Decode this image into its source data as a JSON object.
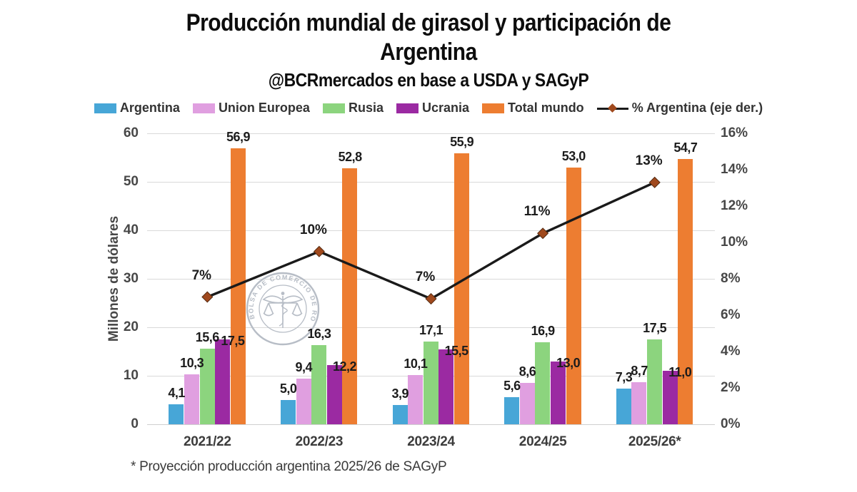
{
  "header": {
    "title": "Producción mundial de girasol y participación de Argentina",
    "subtitle": "@BCRmercados en base a USDA y SAGyP"
  },
  "legend": {
    "items": [
      {
        "label": "Argentina",
        "color": "#47A6D7",
        "type": "swatch"
      },
      {
        "label": "Union Europea",
        "color": "#E09FE0",
        "type": "swatch"
      },
      {
        "label": "Rusia",
        "color": "#8CD47E",
        "type": "swatch"
      },
      {
        "label": "Ucrania",
        "color": "#9B2AA2",
        "type": "swatch"
      },
      {
        "label": "Total mundo",
        "color": "#ED7D31",
        "type": "swatch"
      },
      {
        "label": "% Argentina (eje der.)",
        "color": "#1a1a1a",
        "marker_color": "#A0491D",
        "type": "line"
      }
    ]
  },
  "watermark": {
    "text": "BOLSA DE COMERCIO DE ROSARIO"
  },
  "footnote": {
    "text": "* Proyección producción argentina 2025/26 de SAGyP"
  },
  "chart_data": {
    "type": "bar",
    "categories": [
      "2021/22",
      "2022/23",
      "2023/24",
      "2024/25",
      "2025/26*"
    ],
    "series": [
      {
        "name": "Argentina",
        "color": "#47A6D7",
        "values": [
          4.1,
          5.0,
          3.9,
          5.6,
          7.3
        ],
        "labels": [
          "4,1",
          "5,0",
          "3,9",
          "5,6",
          "7,3"
        ]
      },
      {
        "name": "Union Europea",
        "color": "#E09FE0",
        "values": [
          10.3,
          9.4,
          10.1,
          8.6,
          8.7
        ],
        "labels": [
          "10,3",
          "9,4",
          "10,1",
          "8,6",
          "8,7"
        ]
      },
      {
        "name": "Rusia",
        "color": "#8CD47E",
        "values": [
          15.6,
          16.3,
          17.1,
          16.9,
          17.5
        ],
        "labels": [
          "15,6",
          "16,3",
          "17,1",
          "16,9",
          "17,5"
        ]
      },
      {
        "name": "Ucrania",
        "color": "#9B2AA2",
        "values": [
          17.5,
          12.2,
          15.5,
          13.0,
          11.0
        ],
        "labels": [
          "17,5",
          "12,2",
          "15,5",
          "13,0",
          "11,0"
        ]
      },
      {
        "name": "Total mundo",
        "color": "#ED7D31",
        "values": [
          56.9,
          52.8,
          55.9,
          53.0,
          54.7
        ],
        "labels": [
          "56,9",
          "52,8",
          "55,9",
          "53,0",
          "54,7"
        ]
      }
    ],
    "line_series": {
      "name": "% Argentina (eje der.)",
      "color": "#1a1a1a",
      "marker_color": "#A0491D",
      "marker_edge": "#542A10",
      "axis": "right",
      "plot_values": [
        7.0,
        9.5,
        6.9,
        10.5,
        13.3
      ],
      "labels": [
        "7%",
        "10%",
        "7%",
        "11%",
        "13%"
      ]
    },
    "left_axis": {
      "title": "Millones de dólares",
      "min": 0,
      "max": 60,
      "ticks": [
        "0",
        "10",
        "20",
        "30",
        "40",
        "50",
        "60"
      ]
    },
    "right_axis": {
      "min": 0,
      "max": 16,
      "ticks": [
        "0%",
        "2%",
        "4%",
        "6%",
        "8%",
        "10%",
        "12%",
        "14%",
        "16%"
      ]
    },
    "grid": true,
    "legend_position": "top"
  }
}
